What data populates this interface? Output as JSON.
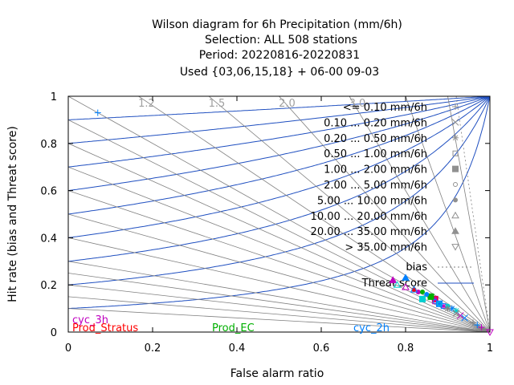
{
  "chart_data": {
    "type": "scatter",
    "title_lines": [
      "Wilson diagram  for 6h Precipitation (mm/6h)",
      "Selection: ALL    508 stations",
      "Period: 20220816-20220831",
      "Used {03,06,15,18} + 06-00 09-03"
    ],
    "xlabel": "False alarm ratio",
    "ylabel": "Hit rate (bias and Threat score)",
    "xlim": [
      0,
      1
    ],
    "ylim": [
      0,
      1
    ],
    "x_ticks": [
      "0",
      "0.2",
      "0.4",
      "0.6",
      "0.8",
      "1"
    ],
    "y_ticks": [
      "0",
      "0.2",
      "0.4",
      "0.6",
      "0.8",
      "1"
    ],
    "bias_labels": [
      "1.2",
      "1.5",
      "2.0",
      "3.0"
    ],
    "bias_values": [
      1.2,
      1.5,
      2.0,
      3.0
    ],
    "threat_score_values": [
      0.1,
      0.2,
      0.3,
      0.4,
      0.5,
      0.6,
      0.7,
      0.8,
      0.9
    ],
    "legend_position": "top-right",
    "classes": [
      {
        "label": "<= 0.10 mm/6h",
        "marker": "+"
      },
      {
        "label": "0.10 ... 0.20 mm/6h",
        "marker": "x"
      },
      {
        "label": "0.20 ... 0.50 mm/6h",
        "marker": "*"
      },
      {
        "label": "0.50 ... 1.00 mm/6h",
        "marker": "square-open"
      },
      {
        "label": "1.00 ... 2.00 mm/6h",
        "marker": "square-filled"
      },
      {
        "label": "2.00 ... 5.00 mm/6h",
        "marker": "circle-open"
      },
      {
        "label": "5.00 ... 10.00 mm/6h",
        "marker": "circle-filled"
      },
      {
        "label": "10.00 ... 20.00 mm/6h",
        "marker": "triangle-open"
      },
      {
        "label": "20.00 ... 35.00 mm/6h",
        "marker": "triangle-filled"
      },
      {
        "label": "> 35.00 mm/6h",
        "marker": "triangle-down-open"
      }
    ],
    "bias_legend": "bias",
    "threat_legend": "Threat score",
    "series": [
      {
        "name": "cyc_3h",
        "color": "#c000c0",
        "points": [
          {
            "c": 0,
            "x": 0.98,
            "y": 0.02
          },
          {
            "c": 1,
            "x": 0.93,
            "y": 0.07
          },
          {
            "c": 2,
            "x": 0.89,
            "y": 0.11
          },
          {
            "c": 3,
            "x": 0.87,
            "y": 0.13
          },
          {
            "c": 4,
            "x": 0.87,
            "y": 0.14
          },
          {
            "c": 5,
            "x": 0.86,
            "y": 0.15
          },
          {
            "c": 6,
            "x": 0.83,
            "y": 0.17
          },
          {
            "c": 7,
            "x": 0.8,
            "y": 0.19
          },
          {
            "c": 8,
            "x": 0.77,
            "y": 0.22
          },
          {
            "c": 9,
            "x": 1.0,
            "y": 0.0
          }
        ]
      },
      {
        "name": "Prod_Stratus",
        "color": "#ff0000",
        "points": [
          {
            "c": 3,
            "x": 0.87,
            "y": 0.14
          },
          {
            "c": 5,
            "x": 0.86,
            "y": 0.15
          },
          {
            "c": 6,
            "x": 0.82,
            "y": 0.18
          }
        ]
      },
      {
        "name": "Prod_EC",
        "color": "#00b000",
        "points": [
          {
            "c": 4,
            "x": 0.86,
            "y": 0.15
          },
          {
            "c": 6,
            "x": 0.84,
            "y": 0.17
          }
        ]
      },
      {
        "name": "cyc_2h",
        "color": "#0080ff",
        "points": [
          {
            "c": 0,
            "x": 0.97,
            "y": 0.03
          },
          {
            "c": 1,
            "x": 0.94,
            "y": 0.06
          },
          {
            "c": 2,
            "x": 0.91,
            "y": 0.1
          },
          {
            "c": 3,
            "x": 0.89,
            "y": 0.11
          },
          {
            "c": 4,
            "x": 0.88,
            "y": 0.12
          },
          {
            "c": 5,
            "x": 0.87,
            "y": 0.13
          },
          {
            "c": 6,
            "x": 0.85,
            "y": 0.16
          },
          {
            "c": 7,
            "x": 0.82,
            "y": 0.18
          },
          {
            "c": 8,
            "x": 0.8,
            "y": 0.23
          },
          {
            "c": 0,
            "x": 0.07,
            "y": 0.93
          }
        ]
      },
      {
        "name": "",
        "color": "#00d0d0",
        "points": [
          {
            "c": 4,
            "x": 0.84,
            "y": 0.14
          },
          {
            "c": 5,
            "x": 0.88,
            "y": 0.12
          },
          {
            "c": 6,
            "x": 0.9,
            "y": 0.11
          },
          {
            "c": 2,
            "x": 0.92,
            "y": 0.09
          },
          {
            "c": 7,
            "x": 0.78,
            "y": 0.2
          }
        ]
      },
      {
        "name": "",
        "color": "#808080",
        "points": [
          {
            "c": 0,
            "x": 0.96,
            "y": 0.04
          },
          {
            "c": 2,
            "x": 0.9,
            "y": 0.1
          },
          {
            "c": 1,
            "x": 0.92,
            "y": 0.08
          }
        ]
      }
    ],
    "colors": {
      "isoline": "#1f4fc0",
      "ray": "#808080",
      "bias_line": "#1f4fc0"
    }
  }
}
